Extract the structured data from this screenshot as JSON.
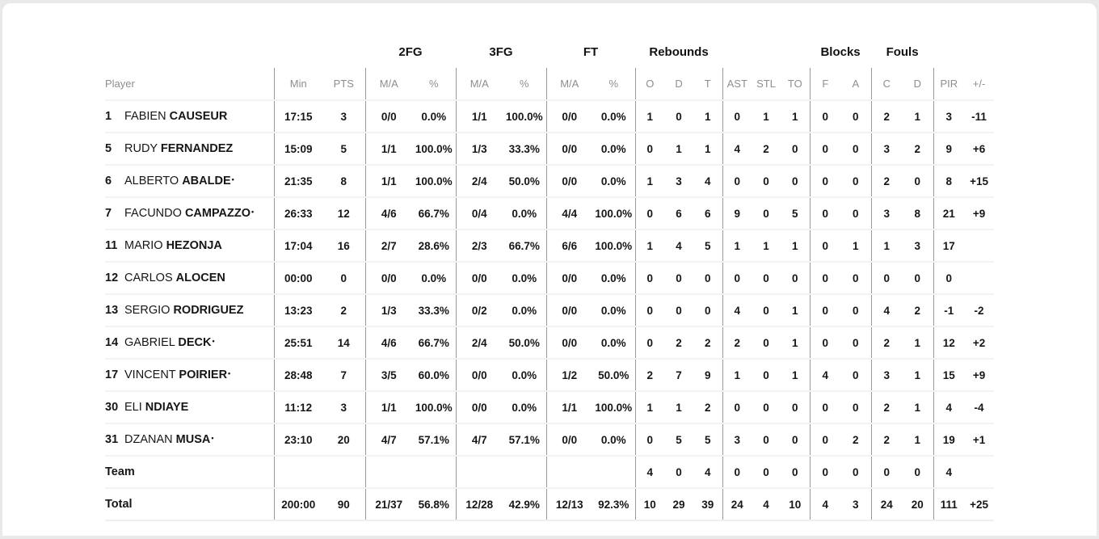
{
  "table": {
    "starter_mark": "•",
    "groups": {
      "fg2": "2FG",
      "fg3": "3FG",
      "ft": "FT",
      "rebounds": "Rebounds",
      "blocks": "Blocks",
      "fouls": "Fouls"
    },
    "columns": {
      "player": "Player",
      "min": "Min",
      "pts": "PTS",
      "ma": "M/A",
      "pct": "%",
      "o": "O",
      "d": "D",
      "t": "T",
      "ast": "AST",
      "stl": "STL",
      "to": "TO",
      "f": "F",
      "a": "A",
      "c": "C",
      "pir": "PIR",
      "plusminus": "+/-"
    }
  },
  "players": [
    {
      "number": "1",
      "first": "FABIEN",
      "last": "CAUSEUR",
      "starter": false,
      "min": "17:15",
      "pts": "3",
      "fg2_ma": "0/0",
      "fg2_pct": "0.0%",
      "fg3_ma": "1/1",
      "fg3_pct": "100.0%",
      "ft_ma": "0/0",
      "ft_pct": "0.0%",
      "reb_o": "1",
      "reb_d": "0",
      "reb_t": "1",
      "ast": "0",
      "stl": "1",
      "to": "1",
      "blk_f": "0",
      "blk_a": "0",
      "foul_c": "2",
      "foul_d": "1",
      "pir": "3",
      "pm": "-11"
    },
    {
      "number": "5",
      "first": "RUDY",
      "last": "FERNANDEZ",
      "starter": false,
      "min": "15:09",
      "pts": "5",
      "fg2_ma": "1/1",
      "fg2_pct": "100.0%",
      "fg3_ma": "1/3",
      "fg3_pct": "33.3%",
      "ft_ma": "0/0",
      "ft_pct": "0.0%",
      "reb_o": "0",
      "reb_d": "1",
      "reb_t": "1",
      "ast": "4",
      "stl": "2",
      "to": "0",
      "blk_f": "0",
      "blk_a": "0",
      "foul_c": "3",
      "foul_d": "2",
      "pir": "9",
      "pm": "+6"
    },
    {
      "number": "6",
      "first": "ALBERTO",
      "last": "ABALDE",
      "starter": true,
      "min": "21:35",
      "pts": "8",
      "fg2_ma": "1/1",
      "fg2_pct": "100.0%",
      "fg3_ma": "2/4",
      "fg3_pct": "50.0%",
      "ft_ma": "0/0",
      "ft_pct": "0.0%",
      "reb_o": "1",
      "reb_d": "3",
      "reb_t": "4",
      "ast": "0",
      "stl": "0",
      "to": "0",
      "blk_f": "0",
      "blk_a": "0",
      "foul_c": "2",
      "foul_d": "0",
      "pir": "8",
      "pm": "+15"
    },
    {
      "number": "7",
      "first": "FACUNDO",
      "last": "CAMPAZZO",
      "starter": true,
      "min": "26:33",
      "pts": "12",
      "fg2_ma": "4/6",
      "fg2_pct": "66.7%",
      "fg3_ma": "0/4",
      "fg3_pct": "0.0%",
      "ft_ma": "4/4",
      "ft_pct": "100.0%",
      "reb_o": "0",
      "reb_d": "6",
      "reb_t": "6",
      "ast": "9",
      "stl": "0",
      "to": "5",
      "blk_f": "0",
      "blk_a": "0",
      "foul_c": "3",
      "foul_d": "8",
      "pir": "21",
      "pm": "+9"
    },
    {
      "number": "11",
      "first": "MARIO",
      "last": "HEZONJA",
      "starter": false,
      "min": "17:04",
      "pts": "16",
      "fg2_ma": "2/7",
      "fg2_pct": "28.6%",
      "fg3_ma": "2/3",
      "fg3_pct": "66.7%",
      "ft_ma": "6/6",
      "ft_pct": "100.0%",
      "reb_o": "1",
      "reb_d": "4",
      "reb_t": "5",
      "ast": "1",
      "stl": "1",
      "to": "1",
      "blk_f": "0",
      "blk_a": "1",
      "foul_c": "1",
      "foul_d": "3",
      "pir": "17",
      "pm": ""
    },
    {
      "number": "12",
      "first": "CARLOS",
      "last": "ALOCEN",
      "starter": false,
      "min": "00:00",
      "pts": "0",
      "fg2_ma": "0/0",
      "fg2_pct": "0.0%",
      "fg3_ma": "0/0",
      "fg3_pct": "0.0%",
      "ft_ma": "0/0",
      "ft_pct": "0.0%",
      "reb_o": "0",
      "reb_d": "0",
      "reb_t": "0",
      "ast": "0",
      "stl": "0",
      "to": "0",
      "blk_f": "0",
      "blk_a": "0",
      "foul_c": "0",
      "foul_d": "0",
      "pir": "0",
      "pm": ""
    },
    {
      "number": "13",
      "first": "SERGIO",
      "last": "RODRIGUEZ",
      "starter": false,
      "min": "13:23",
      "pts": "2",
      "fg2_ma": "1/3",
      "fg2_pct": "33.3%",
      "fg3_ma": "0/2",
      "fg3_pct": "0.0%",
      "ft_ma": "0/0",
      "ft_pct": "0.0%",
      "reb_o": "0",
      "reb_d": "0",
      "reb_t": "0",
      "ast": "4",
      "stl": "0",
      "to": "1",
      "blk_f": "0",
      "blk_a": "0",
      "foul_c": "4",
      "foul_d": "2",
      "pir": "-1",
      "pm": "-2"
    },
    {
      "number": "14",
      "first": "GABRIEL",
      "last": "DECK",
      "starter": true,
      "min": "25:51",
      "pts": "14",
      "fg2_ma": "4/6",
      "fg2_pct": "66.7%",
      "fg3_ma": "2/4",
      "fg3_pct": "50.0%",
      "ft_ma": "0/0",
      "ft_pct": "0.0%",
      "reb_o": "0",
      "reb_d": "2",
      "reb_t": "2",
      "ast": "2",
      "stl": "0",
      "to": "1",
      "blk_f": "0",
      "blk_a": "0",
      "foul_c": "2",
      "foul_d": "1",
      "pir": "12",
      "pm": "+2"
    },
    {
      "number": "17",
      "first": "VINCENT",
      "last": "POIRIER",
      "starter": true,
      "min": "28:48",
      "pts": "7",
      "fg2_ma": "3/5",
      "fg2_pct": "60.0%",
      "fg3_ma": "0/0",
      "fg3_pct": "0.0%",
      "ft_ma": "1/2",
      "ft_pct": "50.0%",
      "reb_o": "2",
      "reb_d": "7",
      "reb_t": "9",
      "ast": "1",
      "stl": "0",
      "to": "1",
      "blk_f": "4",
      "blk_a": "0",
      "foul_c": "3",
      "foul_d": "1",
      "pir": "15",
      "pm": "+9"
    },
    {
      "number": "30",
      "first": "ELI",
      "last": "NDIAYE",
      "starter": false,
      "min": "11:12",
      "pts": "3",
      "fg2_ma": "1/1",
      "fg2_pct": "100.0%",
      "fg3_ma": "0/0",
      "fg3_pct": "0.0%",
      "ft_ma": "1/1",
      "ft_pct": "100.0%",
      "reb_o": "1",
      "reb_d": "1",
      "reb_t": "2",
      "ast": "0",
      "stl": "0",
      "to": "0",
      "blk_f": "0",
      "blk_a": "0",
      "foul_c": "2",
      "foul_d": "1",
      "pir": "4",
      "pm": "-4"
    },
    {
      "number": "31",
      "first": "DZANAN",
      "last": "MUSA",
      "starter": true,
      "min": "23:10",
      "pts": "20",
      "fg2_ma": "4/7",
      "fg2_pct": "57.1%",
      "fg3_ma": "4/7",
      "fg3_pct": "57.1%",
      "ft_ma": "0/0",
      "ft_pct": "0.0%",
      "reb_o": "0",
      "reb_d": "5",
      "reb_t": "5",
      "ast": "3",
      "stl": "0",
      "to": "0",
      "blk_f": "0",
      "blk_a": "2",
      "foul_c": "2",
      "foul_d": "1",
      "pir": "19",
      "pm": "+1"
    }
  ],
  "team_row": {
    "label": "Team",
    "min": "",
    "pts": "",
    "fg2_ma": "",
    "fg2_pct": "",
    "fg3_ma": "",
    "fg3_pct": "",
    "ft_ma": "",
    "ft_pct": "",
    "reb_o": "4",
    "reb_d": "0",
    "reb_t": "4",
    "ast": "0",
    "stl": "0",
    "to": "0",
    "blk_f": "0",
    "blk_a": "0",
    "foul_c": "0",
    "foul_d": "0",
    "pir": "4",
    "pm": ""
  },
  "total_row": {
    "label": "Total",
    "min": "200:00",
    "pts": "90",
    "fg2_ma": "21/37",
    "fg2_pct": "56.8%",
    "fg3_ma": "12/28",
    "fg3_pct": "42.9%",
    "ft_ma": "12/13",
    "ft_pct": "92.3%",
    "reb_o": "10",
    "reb_d": "29",
    "reb_t": "39",
    "ast": "24",
    "stl": "4",
    "to": "10",
    "blk_f": "4",
    "blk_a": "3",
    "foul_c": "24",
    "foul_d": "20",
    "pir": "111",
    "pm": "+25"
  },
  "colors": {
    "page_background": "#e9e9e9",
    "card_background": "#ffffff",
    "header_text": "#8e8e8e",
    "body_text": "#161616",
    "vertical_divider": "#999999",
    "horizontal_divider": "#f2f2f2"
  }
}
